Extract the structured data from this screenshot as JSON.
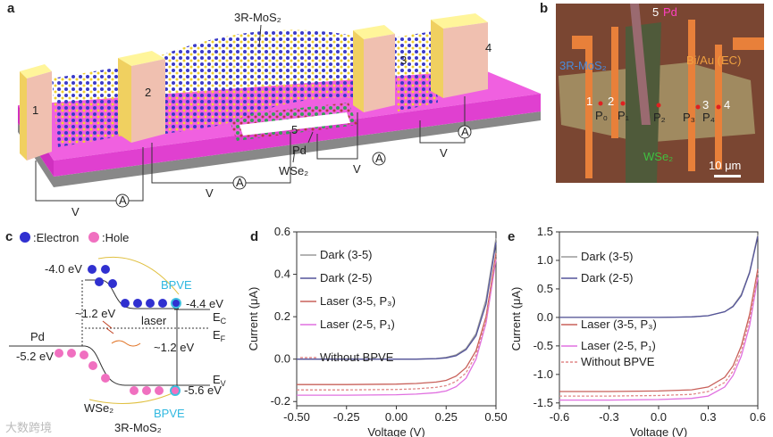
{
  "panel_labels": [
    "a",
    "b",
    "c",
    "d",
    "e"
  ],
  "panel_a": {
    "material": "3R-MoS₂",
    "electrodes": [
      "1",
      "2",
      "3",
      "4"
    ],
    "pd_electrode": "5",
    "pd": "Pd",
    "flake": "WSe₂",
    "voltage": [
      "V",
      "V",
      "V",
      "V"
    ],
    "ammeter": [
      "A",
      "A",
      "A",
      "A"
    ]
  },
  "panel_b": {
    "pd_number": "5",
    "pd": "Pd",
    "mos2": "3R-MoS₂",
    "bi_au": "Bi/Au (EC)",
    "wse2": "WSe₂",
    "electrodes": [
      "1",
      "2",
      "3",
      "4"
    ],
    "points": [
      "P₀",
      "P₁",
      "P₂",
      "P₃",
      "P₄"
    ],
    "scale": "10 μm"
  },
  "panel_c": {
    "legend": [
      ":Electron",
      ":Hole"
    ],
    "energies": [
      "-4.0 eV",
      "-4.4 eV",
      "~1.2 eV",
      "~1.2 eV",
      "-5.2 eV",
      "-5.6 eV"
    ],
    "pd": "Pd",
    "bpve": [
      "BPVE",
      "BPVE"
    ],
    "laser": "laser",
    "wse2": "WSe₂",
    "mos2": "3R-MoS₂",
    "levels": [
      {
        "main": "E",
        "sub": "C"
      },
      {
        "main": "E",
        "sub": "F"
      },
      {
        "main": "E",
        "sub": "V"
      }
    ]
  },
  "watermark": "大数跨境",
  "chart_data": [
    {
      "type": "line",
      "xlabel": "Voltage (V)",
      "ylabel": "Current (μA)",
      "x": [
        -0.5,
        -0.25,
        0,
        0.1,
        0.2,
        0.25,
        0.3,
        0.35,
        0.4,
        0.45,
        0.5
      ],
      "xlim": [
        -0.5,
        0.5
      ],
      "xticks": [
        {
          "value": -0.5,
          "label": "-0.50"
        },
        -0.25,
        {
          "value": 0,
          "label": "0.00"
        },
        0.25,
        {
          "value": 0.5,
          "label": "0.50"
        }
      ],
      "ylim": [
        -0.22,
        0.6
      ],
      "yticks": [
        -0.2,
        {
          "value": 0,
          "label": "0.0"
        },
        0.2,
        0.4,
        0.6
      ],
      "series": [
        {
          "name": "Dark (3-5)",
          "color": "#9a9a9a",
          "style": "solid",
          "values": [
            0,
            0,
            0,
            0,
            0.003,
            0.008,
            0.02,
            0.05,
            0.12,
            0.28,
            0.57
          ]
        },
        {
          "name": "Dark (2-5)",
          "color": "#54549a",
          "style": "solid",
          "values": [
            0,
            0,
            0,
            0,
            0.002,
            0.006,
            0.016,
            0.045,
            0.11,
            0.26,
            0.55
          ]
        },
        {
          "name": "Laser (3-5, P₃)",
          "color": "#c8605a",
          "style": "solid",
          "values": [
            -0.12,
            -0.12,
            -0.118,
            -0.115,
            -0.108,
            -0.1,
            -0.08,
            -0.04,
            0.04,
            0.2,
            0.5
          ]
        },
        {
          "name": "Laser (2-5, P₁)",
          "color": "#e070e0",
          "style": "solid",
          "values": [
            -0.17,
            -0.17,
            -0.168,
            -0.165,
            -0.158,
            -0.15,
            -0.13,
            -0.09,
            0,
            0.17,
            0.47
          ]
        },
        {
          "name": "Without BPVE",
          "color": "#e08888",
          "style": "dashed",
          "values": [
            -0.145,
            -0.145,
            -0.143,
            -0.14,
            -0.133,
            -0.125,
            -0.105,
            -0.065,
            0.02,
            0.185,
            0.485
          ]
        }
      ]
    },
    {
      "type": "line",
      "xlabel": "Voltage (V)",
      "ylabel": "Current (μA)",
      "x": [
        -0.6,
        -0.3,
        0,
        0.2,
        0.3,
        0.4,
        0.45,
        0.5,
        0.55,
        0.6
      ],
      "xlim": [
        -0.6,
        0.6
      ],
      "xticks": [
        -0.6,
        -0.3,
        {
          "value": 0,
          "label": "0.0"
        },
        0.3,
        0.6
      ],
      "ylim": [
        -1.55,
        1.5
      ],
      "yticks": [
        -1.5,
        {
          "value": -1,
          "label": "-1.0"
        },
        -0.5,
        {
          "value": 0,
          "label": "0.0"
        },
        0.5,
        {
          "value": 1,
          "label": "1.0"
        },
        1.5
      ],
      "series": [
        {
          "name": "Dark (3-5)",
          "color": "#9a9a9a",
          "style": "solid",
          "values": [
            0,
            0,
            0,
            0.01,
            0.03,
            0.1,
            0.2,
            0.4,
            0.8,
            1.45
          ]
        },
        {
          "name": "Dark (2-5)",
          "color": "#54549a",
          "style": "solid",
          "values": [
            0,
            0,
            0,
            0.01,
            0.03,
            0.1,
            0.19,
            0.38,
            0.78,
            1.42
          ]
        },
        {
          "name": "Laser (3-5, P₃)",
          "color": "#c8605a",
          "style": "solid",
          "values": [
            -1.3,
            -1.3,
            -1.29,
            -1.27,
            -1.22,
            -1.05,
            -0.85,
            -0.5,
            0.05,
            0.85
          ]
        },
        {
          "name": "Laser (2-5, P₁)",
          "color": "#e070e0",
          "style": "solid",
          "values": [
            -1.45,
            -1.45,
            -1.44,
            -1.42,
            -1.38,
            -1.22,
            -1.02,
            -0.68,
            -0.15,
            0.7
          ]
        },
        {
          "name": "Without BPVE",
          "color": "#e08888",
          "style": "dashed",
          "values": [
            -1.38,
            -1.38,
            -1.37,
            -1.35,
            -1.3,
            -1.14,
            -0.94,
            -0.59,
            -0.05,
            0.78
          ]
        }
      ]
    }
  ]
}
